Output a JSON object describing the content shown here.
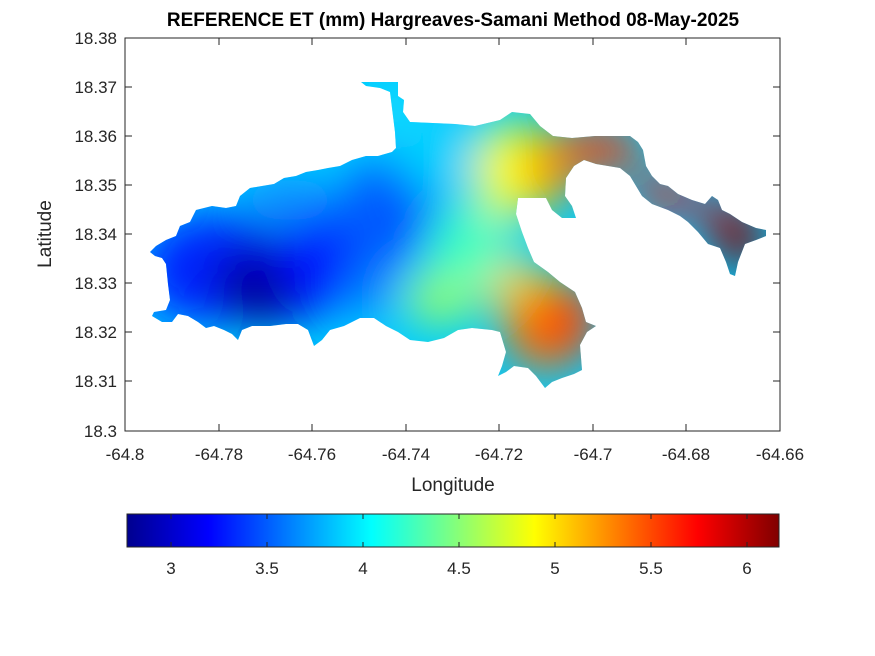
{
  "title": "REFERENCE ET (mm) Hargreaves-Samani Method  08-May-2025",
  "xlabel": "Longitude",
  "ylabel": "Latitude",
  "xticks": [
    "-64.8",
    "-64.78",
    "-64.76",
    "-64.74",
    "-64.72",
    "-64.7",
    "-64.68",
    "-64.66"
  ],
  "yticks": [
    "18.38",
    "18.37",
    "18.36",
    "18.35",
    "18.34",
    "18.33",
    "18.32",
    "18.31",
    "18.3"
  ],
  "colorbar": {
    "colormap": "jet",
    "range": [
      2.78,
      6.17
    ],
    "ticks": [
      "3",
      "3.5",
      "4",
      "4.5",
      "5",
      "5.5",
      "6"
    ]
  },
  "chart_data": {
    "type": "heatmap",
    "title": "REFERENCE ET (mm) Hargreaves-Samani Method  08-May-2025",
    "xlabel": "Longitude",
    "ylabel": "Latitude",
    "xlim": [
      -64.8,
      -64.66
    ],
    "ylim": [
      18.3,
      18.38
    ],
    "value_range": [
      2.78,
      6.17
    ],
    "colormap": "jet",
    "grid": false,
    "regions": [
      {
        "name": "west",
        "lon_range": [
          -64.793,
          -64.755
        ],
        "lat_range": [
          18.318,
          18.347
        ],
        "value_range": [
          2.8,
          3.5
        ]
      },
      {
        "name": "center-west",
        "lon_range": [
          -64.755,
          -64.74
        ],
        "lat_range": [
          18.318,
          18.356
        ],
        "value_range": [
          3.3,
          4.0
        ]
      },
      {
        "name": "center",
        "lon_range": [
          -64.74,
          -64.72
        ],
        "lat_range": [
          18.318,
          18.37
        ],
        "value_range": [
          4.0,
          4.8
        ]
      },
      {
        "name": "center-east",
        "lon_range": [
          -64.72,
          -64.71
        ],
        "lat_range": [
          18.31,
          18.362
        ],
        "value_range": [
          4.8,
          5.5
        ]
      },
      {
        "name": "south-east",
        "lon_range": [
          -64.715,
          -64.704
        ],
        "lat_range": [
          18.309,
          18.328
        ],
        "value_range": [
          5.2,
          5.7
        ]
      },
      {
        "name": "east-corridor",
        "lon_range": [
          -64.71,
          -64.68
        ],
        "lat_range": [
          18.341,
          18.359
        ],
        "value_range": [
          5.5,
          5.9
        ]
      },
      {
        "name": "east-tip",
        "lon_range": [
          -64.674,
          -64.663
        ],
        "lat_range": [
          18.332,
          18.343
        ],
        "value_range": [
          5.9,
          6.17
        ]
      }
    ]
  }
}
